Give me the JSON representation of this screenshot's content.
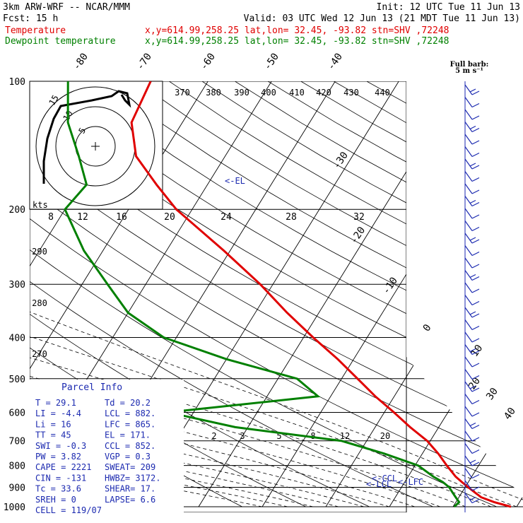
{
  "header": {
    "line1_left": "3km ARW-WRF -- NCAR/MMM",
    "line1_right": "Init: 12 UTC Tue 11 Jun 13",
    "line2_left": "Fcst:   15 h",
    "line2_right": "Valid: 03 UTC Wed 12 Jun 13 (21 MDT Tue 11 Jun 13)",
    "temp_label": "Temperature",
    "temp_loc": "x,y=614.99,258.25   lat,lon= 32.45, -93.82  stn=SHV ,72248",
    "dew_label": "Dewpoint temperature",
    "dew_loc": "x,y=614.99,258.25   lat,lon= 32.45, -93.82  stn=SHV ,72248"
  },
  "colors": {
    "temperature": "#e00000",
    "dewpoint": "#008000",
    "parcel_text": "#1c2ab0",
    "wind_barbs": "#1c2ab0"
  },
  "chart_data": {
    "type": "line",
    "subtype": "skew-T log-P sounding",
    "y_axis": "pressure (hPa), log scale",
    "ylim": [
      1000,
      100
    ],
    "pressure_ticks": [
      100,
      200,
      300,
      400,
      500,
      600,
      700,
      800,
      900,
      1000
    ],
    "isotherm_labels": [
      "-80",
      "-70",
      "-60",
      "-50",
      "-40",
      "-30",
      "-20",
      "-10",
      "0",
      "10",
      "20",
      "30",
      "40"
    ],
    "theta_labels": [
      "370",
      "380",
      "390",
      "400",
      "410",
      "420",
      "430",
      "440",
      "290",
      "280",
      "270"
    ],
    "mixing_ratio_labels": [
      "2",
      "3",
      "5",
      "8",
      "12",
      "20"
    ],
    "hodograph_ring_labels": [
      "5",
      "10",
      "15"
    ],
    "hodograph_speed_label": "kts",
    "hodograph_axis_labels": [
      "8",
      "12",
      "16",
      "20",
      "24",
      "28",
      "32"
    ],
    "series": [
      {
        "name": "Temperature",
        "pressure": [
          1000,
          975,
          950,
          925,
          900,
          875,
          850,
          800,
          750,
          700,
          650,
          600,
          550,
          500,
          450,
          400,
          350,
          300,
          250,
          200,
          175,
          150,
          125,
          100
        ],
        "temperature": [
          29.1,
          26.0,
          23.5,
          22.0,
          20.5,
          19.0,
          17.5,
          15.0,
          12.5,
          9.5,
          5.5,
          1.5,
          -3.0,
          -7.5,
          -12.5,
          -18.5,
          -25.0,
          -32.0,
          -41.0,
          -52.5,
          -58.0,
          -64.0,
          -68.0,
          -69.0
        ]
      },
      {
        "name": "Dewpoint temperature",
        "pressure": [
          1000,
          975,
          950,
          925,
          900,
          875,
          850,
          800,
          750,
          700,
          650,
          600,
          550,
          500,
          450,
          400,
          350,
          300,
          250,
          200,
          175,
          150,
          125,
          100
        ],
        "dewpoint": [
          20.2,
          20.5,
          19.5,
          18.5,
          17.5,
          16.0,
          14.0,
          10.5,
          4.0,
          -4.0,
          -22.0,
          -34.0,
          -12.0,
          -17.0,
          -30.0,
          -42.0,
          -50.0,
          -56.0,
          -63.0,
          -70.0,
          -69.0,
          -73.0,
          -78.0,
          -82.0
        ]
      }
    ],
    "level_markers": [
      "<-EL",
      "<-CCL",
      "<-LCL",
      "<-LFC"
    ],
    "wind_scale": {
      "title": "Full barb:",
      "unit": "5 m s⁻¹"
    }
  },
  "parcel_info": {
    "title": "Parcel Info",
    "rows": [
      [
        "T   =   29.1",
        "Td =  20.2"
      ],
      [
        "LI  =   -4.4",
        "LCL =  882."
      ],
      [
        "Li  =     16",
        "LFC =  865."
      ],
      [
        "TT  =     45",
        "EL  =  171."
      ],
      [
        "SWI =   -0.3",
        "CCL =  852."
      ],
      [
        "PW  =   3.82",
        "VGP =   0.3"
      ],
      [
        "CAPE =  2221",
        "SWEAT= 209"
      ],
      [
        "CIN  =  -131",
        "HWBZ= 3172."
      ],
      [
        "Tc  =   33.6",
        "SHEAR=  17."
      ],
      [
        "SREH =     0",
        "LAPSE=  6.6"
      ],
      [
        "CELL = 119/07",
        ""
      ]
    ]
  }
}
